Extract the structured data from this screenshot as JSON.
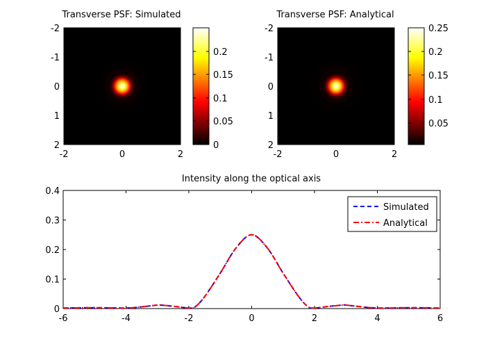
{
  "chart_data": [
    {
      "type": "heatmap",
      "title": "Transverse PSF: Simulated",
      "x_ticks": [
        "-2",
        "0",
        "2"
      ],
      "y_ticks": [
        "-2",
        "-1",
        "0",
        "1",
        "2"
      ],
      "xlim": [
        -2,
        2
      ],
      "ylim": [
        -2,
        2
      ],
      "peak": 0.25,
      "center": [
        0,
        0
      ],
      "colormap": "hot",
      "colorbar": {
        "ticks": [
          0,
          0.05,
          0.1,
          0.15,
          0.2
        ],
        "tick_labels": [
          "0",
          "0.05",
          "0.1",
          "0.15",
          "0.2"
        ],
        "range": [
          0,
          0.25
        ]
      }
    },
    {
      "type": "heatmap",
      "title": "Transverse PSF: Analytical",
      "x_ticks": [
        "-2",
        "0",
        "2"
      ],
      "y_ticks": [
        "-2",
        "-1",
        "0",
        "1",
        "2"
      ],
      "xlim": [
        -2,
        2
      ],
      "ylim": [
        -2,
        2
      ],
      "peak": 0.25,
      "center": [
        0,
        0
      ],
      "colormap": "hot",
      "colorbar": {
        "ticks": [
          0.05,
          0.1,
          0.15,
          0.2,
          0.25
        ],
        "tick_labels": [
          "0.05",
          "0.1",
          "0.15",
          "0.2",
          "0.25"
        ],
        "range": [
          0,
          0.25
        ]
      }
    },
    {
      "type": "line",
      "title": "Intensity along the optical axis",
      "xlim": [
        -6,
        6
      ],
      "ylim": [
        0,
        0.4
      ],
      "x_ticks": [
        "-6",
        "-4",
        "-2",
        "0",
        "2",
        "4",
        "6"
      ],
      "y_ticks": [
        "0",
        "0.1",
        "0.2",
        "0.3",
        "0.4"
      ],
      "legend_position": "top-right",
      "x": [
        -6,
        -5,
        -4,
        -3.5,
        -3,
        -2.9,
        -2.5,
        -2,
        -1.8,
        -1.5,
        -1,
        -0.5,
        0,
        0.5,
        1,
        1.5,
        1.8,
        2,
        2.5,
        2.9,
        3,
        3.5,
        4,
        5,
        6
      ],
      "series": [
        {
          "name": "Simulated",
          "color": "#0000ff",
          "dash": "dashed",
          "values": [
            0.002,
            0.003,
            0.002,
            0.006,
            0.012,
            0.012,
            0.008,
            0.002,
            0.006,
            0.04,
            0.12,
            0.205,
            0.25,
            0.205,
            0.12,
            0.04,
            0.006,
            0.002,
            0.008,
            0.012,
            0.012,
            0.006,
            0.002,
            0.003,
            0.002
          ]
        },
        {
          "name": "Analytical",
          "color": "#ff0000",
          "dash": "dashdot",
          "values": [
            0.002,
            0.003,
            0.002,
            0.006,
            0.012,
            0.012,
            0.008,
            0.002,
            0.006,
            0.04,
            0.12,
            0.205,
            0.25,
            0.205,
            0.12,
            0.04,
            0.006,
            0.002,
            0.008,
            0.012,
            0.012,
            0.006,
            0.002,
            0.003,
            0.002
          ]
        }
      ]
    }
  ]
}
